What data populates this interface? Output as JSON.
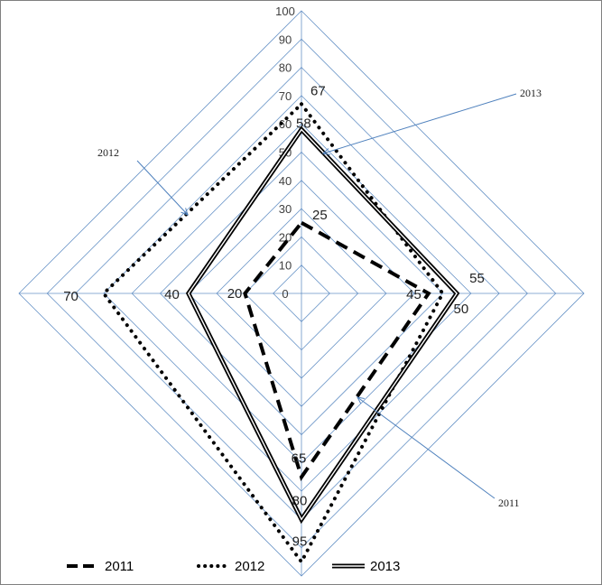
{
  "chart_data": {
    "type": "radar",
    "axes": [
      "top",
      "right",
      "bottom",
      "left"
    ],
    "rlim": [
      0,
      100
    ],
    "rticks": [
      "0",
      "10",
      "20",
      "30",
      "40",
      "50",
      "60",
      "70",
      "80",
      "90",
      "100"
    ],
    "grid": true,
    "legend_position": "bottom",
    "series": [
      {
        "name": "2011",
        "values": [
          25,
          45,
          65,
          20
        ],
        "labels": [
          "25",
          "45",
          "65",
          "20"
        ],
        "style": "dashed",
        "color": "#000000"
      },
      {
        "name": "2012",
        "values": [
          67,
          50,
          95,
          70
        ],
        "labels": [
          "67",
          "50",
          "95",
          "70"
        ],
        "style": "dotted",
        "color": "#000000"
      },
      {
        "name": "2013",
        "values": [
          58,
          55,
          80,
          40
        ],
        "labels": [
          "58",
          "55",
          "80",
          "40"
        ],
        "style": "double",
        "color": "#000000"
      }
    ],
    "annotations": [
      {
        "text": "2013",
        "series": "2013"
      },
      {
        "text": "2012",
        "series": "2012"
      },
      {
        "text": "2011",
        "series": "2011"
      }
    ]
  }
}
